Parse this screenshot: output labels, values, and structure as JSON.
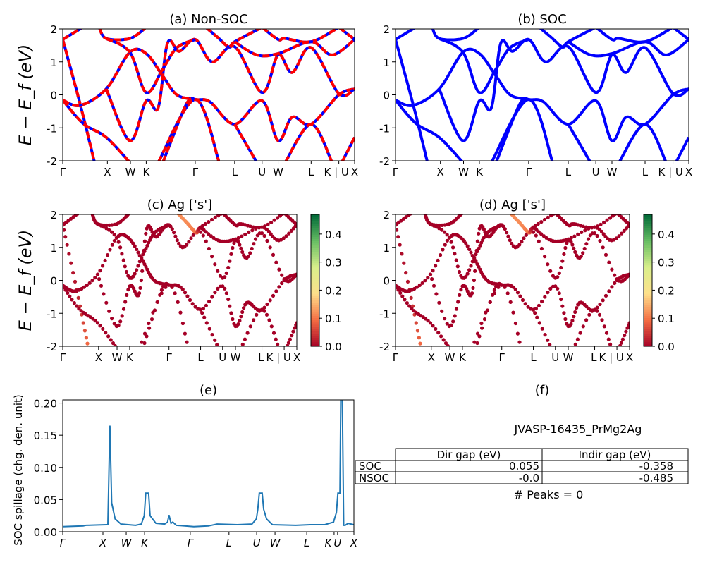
{
  "chart_data": [
    {
      "panel": "a",
      "type": "line",
      "title": "(a) Non-SOC",
      "ylabel": "E − E_f (eV)",
      "ylim": [
        -2,
        2
      ],
      "yticks": [
        -2,
        -1,
        0,
        1,
        2
      ],
      "style": "red-blue-dashed",
      "bandset": "bands"
    },
    {
      "panel": "b",
      "type": "line",
      "title": "(b) SOC",
      "ylim": [
        -2,
        2
      ],
      "yticks": [
        -2,
        -1,
        0,
        1,
        2
      ],
      "style": "blue",
      "bandset": "bands"
    },
    {
      "panel": "c",
      "type": "scatter",
      "title": "(c)  Ag ['s']",
      "ylabel": "E − E_f (eV)",
      "ylim": [
        -2,
        2
      ],
      "yticks": [
        -2,
        -1,
        0,
        1,
        2
      ],
      "colorbar": {
        "range": [
          0,
          0.47
        ],
        "ticks": [
          "0.0",
          "0.1",
          "0.2",
          "0.3",
          "0.4"
        ]
      },
      "bandset": "bands"
    },
    {
      "panel": "d",
      "type": "scatter",
      "title": "(d) Ag ['s']",
      "ylim": [
        -2,
        2
      ],
      "yticks": [
        -2,
        -1,
        0,
        1,
        2
      ],
      "colorbar": {
        "range": [
          0,
          0.47
        ],
        "ticks": [
          "0.0",
          "0.1",
          "0.2",
          "0.3",
          "0.4"
        ]
      },
      "bandset": "bands"
    },
    {
      "panel": "e",
      "type": "line",
      "title": "(e)",
      "ylabel": "SOC spillage (chg. den. unit)",
      "ylim": [
        0,
        0.205
      ],
      "yticks": [
        "0.00",
        "0.05",
        "0.10",
        "0.15",
        "0.20"
      ],
      "color": "#1f77b4",
      "kpath_labels": [
        "Γ",
        "X",
        "W",
        "K",
        "Γ",
        "L",
        "U",
        "W",
        "L",
        "K",
        "U",
        "X"
      ],
      "kpath_positions": [
        0,
        0.138,
        0.218,
        0.281,
        0.438,
        0.571,
        0.666,
        0.729,
        0.838,
        0.932,
        0.944,
        1
      ],
      "x": [
        0,
        0.07,
        0.08,
        0.15,
        0.155,
        0.162,
        0.168,
        0.18,
        0.2,
        0.25,
        0.27,
        0.28,
        0.285,
        0.295,
        0.3,
        0.32,
        0.35,
        0.36,
        0.365,
        0.372,
        0.378,
        0.39,
        0.45,
        0.5,
        0.53,
        0.6,
        0.65,
        0.665,
        0.67,
        0.675,
        0.685,
        0.69,
        0.7,
        0.72,
        0.8,
        0.85,
        0.9,
        0.93,
        0.94,
        0.945,
        0.952,
        0.955,
        0.96,
        0.965,
        0.97,
        0.98,
        1.0
      ],
      "y": [
        0.008,
        0.009,
        0.01,
        0.011,
        0.011,
        0.165,
        0.045,
        0.02,
        0.012,
        0.01,
        0.012,
        0.025,
        0.06,
        0.06,
        0.025,
        0.013,
        0.012,
        0.015,
        0.026,
        0.013,
        0.015,
        0.01,
        0.008,
        0.009,
        0.012,
        0.011,
        0.012,
        0.02,
        0.035,
        0.06,
        0.06,
        0.035,
        0.02,
        0.011,
        0.01,
        0.011,
        0.011,
        0.015,
        0.03,
        0.06,
        0.06,
        0.21,
        0.21,
        0.01,
        0.01,
        0.013,
        0.011
      ]
    }
  ],
  "kpath": {
    "labels": [
      "Γ",
      "X",
      "W",
      "K",
      "Γ",
      "L",
      "U",
      "W",
      "L",
      "K | U",
      "X"
    ],
    "positions": [
      0,
      0.153,
      0.232,
      0.286,
      0.454,
      0.589,
      0.683,
      0.738,
      0.851,
      0.946,
      1
    ]
  },
  "bands": [
    {
      "pts": [
        [
          0,
          1.68
        ],
        [
          0.06,
          -0.29
        ],
        [
          0.109,
          -2.05
        ]
      ],
      "w": [
        0,
        0.02,
        0.1
      ]
    },
    {
      "pts": [
        [
          0,
          -0.16
        ],
        [
          0.069,
          -0.86
        ],
        [
          0.149,
          -1.29
        ],
        [
          0.23,
          -2.05
        ]
      ]
    },
    {
      "pts": [
        [
          0,
          -0.16
        ],
        [
          0.06,
          -0.32
        ],
        [
          0.149,
          0.18
        ],
        [
          0.23,
          1.29
        ],
        [
          0.286,
          1.25
        ],
        [
          0.343,
          0.57
        ],
        [
          0.391,
          0
        ],
        [
          0.454,
          -0.14
        ],
        [
          0.504,
          -0.21
        ],
        [
          0.589,
          -0.89
        ],
        [
          0.683,
          -0.18
        ],
        [
          0.738,
          -1.39
        ],
        [
          0.786,
          -0.68
        ],
        [
          0.851,
          -0.89
        ],
        [
          0.946,
          0
        ],
        [
          1,
          0.18
        ]
      ]
    },
    {
      "pts": [
        [
          0.149,
          0.18
        ],
        [
          0.23,
          -1.39
        ],
        [
          0.286,
          -0.18
        ],
        [
          0.327,
          -0.39
        ],
        [
          0.359,
          1.57
        ],
        [
          0.399,
          1.32
        ],
        [
          0.454,
          1.68
        ],
        [
          0.512,
          1.0
        ],
        [
          0.589,
          1.46
        ],
        [
          0.683,
          0.07
        ],
        [
          0.738,
          1.21
        ],
        [
          0.786,
          0.68
        ],
        [
          0.851,
          1.43
        ],
        [
          0.946,
          0.04
        ],
        [
          1,
          0.18
        ]
      ]
    },
    {
      "pts": [
        [
          0,
          1.68
        ],
        [
          0.069,
          2.05
        ]
      ]
    },
    {
      "pts": [
        [
          0.125,
          2.05
        ],
        [
          0.149,
          1.71
        ],
        [
          0.23,
          1.71
        ],
        [
          0.286,
          2.05
        ]
      ]
    },
    {
      "pts": [
        [
          0.149,
          1.71
        ],
        [
          0.23,
          1.29
        ],
        [
          0.286,
          0.07
        ],
        [
          0.343,
          0.79
        ],
        [
          0.391,
          1.43
        ],
        [
          0.454,
          1.68
        ]
      ]
    },
    {
      "pts": [
        [
          0.327,
          -2.05
        ],
        [
          0.454,
          -0.14
        ],
        [
          0.536,
          -2.05
        ]
      ]
    },
    {
      "pts": [
        [
          0.343,
          -2.05
        ],
        [
          0.423,
          -0.29
        ],
        [
          0.454,
          -0.14
        ]
      ]
    },
    {
      "pts": [
        [
          0.589,
          -0.89
        ],
        [
          0.665,
          -2.05
        ]
      ]
    },
    {
      "pts": [
        [
          0.762,
          -2.05
        ],
        [
          0.851,
          -0.89
        ],
        [
          0.923,
          -2.05
        ]
      ]
    },
    {
      "pts": [
        [
          0.956,
          -2.05
        ],
        [
          1,
          -1.29
        ]
      ]
    },
    {
      "pts": [
        [
          0.49,
          2.05
        ],
        [
          0.53,
          1.75
        ],
        [
          0.57,
          1.45
        ],
        [
          0.589,
          1.61
        ],
        [
          0.683,
          2.05
        ]
      ],
      "w": [
        0.12,
        0.12,
        0.1,
        0,
        0
      ]
    },
    {
      "pts": [
        [
          0.683,
          2.05
        ],
        [
          0.738,
          1.68
        ],
        [
          0.762,
          1.71
        ],
        [
          0.851,
          1.61
        ],
        [
          0.946,
          2.05
        ]
      ]
    },
    {
      "pts": [
        [
          0.589,
          1.61
        ],
        [
          0.665,
          1.21
        ],
        [
          0.738,
          1.25
        ],
        [
          0.851,
          1.61
        ],
        [
          0.923,
          1.21
        ],
        [
          1,
          1.68
        ]
      ]
    },
    {
      "pts": [
        [
          0.946,
          2.05
        ],
        [
          1,
          1.68
        ]
      ]
    }
  ],
  "colormap": {
    "name": "RdYlGn",
    "stops": [
      "#a50026",
      "#f46d43",
      "#fee08b",
      "#d9ef8b",
      "#66bd63",
      "#006837"
    ]
  },
  "colors": {
    "nsoc_solid": "#ff0000",
    "nsoc_dash": "#0000ff",
    "soc": "#0000ff"
  },
  "panel_f": {
    "title": "(f)",
    "material": "JVASP-16435_PrMg2Ag",
    "table": {
      "headers": [
        "",
        "Dir gap (eV)",
        "Indir gap (eV)"
      ],
      "rows": [
        {
          "label": "SOC",
          "dir": "0.055",
          "indir": "-0.358"
        },
        {
          "label": "NSOC",
          "dir": "-0.0",
          "indir": "-0.485"
        }
      ]
    },
    "peaks": "# Peaks = 0"
  }
}
